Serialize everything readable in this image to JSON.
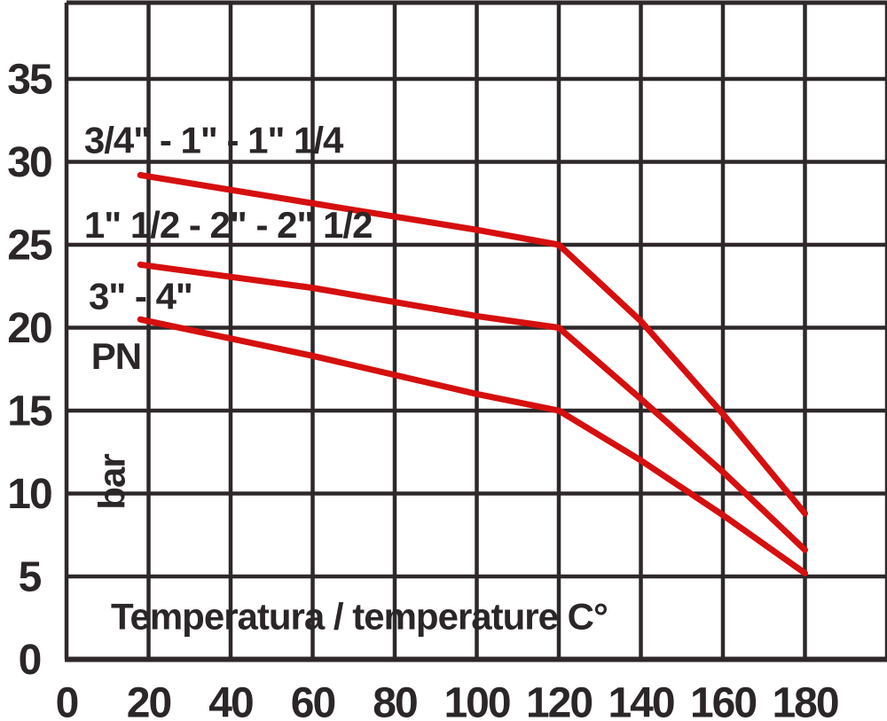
{
  "figure": {
    "background": "#ffffff",
    "grid_color": "#2e282a",
    "axis_color": "#2e282a",
    "text_color": "#2b2627",
    "curve_color": "#d60f0f"
  },
  "chart_data": {
    "type": "line",
    "title": "",
    "xlabel": "Temperatura / temperature C°",
    "ylabel": "PN",
    "ylabel_unit": "bar",
    "grid": true,
    "legend_position": "inline-annotations",
    "x_ticks": [
      0,
      20,
      40,
      60,
      80,
      100,
      120,
      140,
      160,
      180
    ],
    "y_ticks": [
      0,
      5,
      10,
      15,
      20,
      25,
      30,
      35
    ],
    "xlim": [
      0,
      200
    ],
    "ylim": [
      0,
      39.6
    ],
    "series": [
      {
        "name": "3/4\" - 1\" - 1\" 1/4",
        "points": [
          [
            18,
            29.2
          ],
          [
            60,
            27.5
          ],
          [
            100,
            25.9
          ],
          [
            120,
            25
          ],
          [
            140,
            20.4
          ],
          [
            160,
            14.8
          ],
          [
            180,
            8.8
          ]
        ]
      },
      {
        "name": "1\" 1/2 - 2\" - 2\" 1/2",
        "points": [
          [
            18,
            23.8
          ],
          [
            60,
            22.4
          ],
          [
            100,
            20.7
          ],
          [
            120,
            20
          ],
          [
            140,
            15.7
          ],
          [
            160,
            11.3
          ],
          [
            180,
            6.6
          ]
        ]
      },
      {
        "name": "3\" - 4\"",
        "points": [
          [
            18,
            20.5
          ],
          [
            60,
            18.3
          ],
          [
            100,
            16.0
          ],
          [
            120,
            15
          ],
          [
            140,
            12.0
          ],
          [
            160,
            8.7
          ],
          [
            180,
            5.2
          ]
        ]
      }
    ],
    "annotations": [
      {
        "text": "3/4\" - 1\" - 1\" 1/4",
        "x": 4.3,
        "y": 31.3,
        "anchor": "start",
        "rotate": false
      },
      {
        "text": "1\" 1/2 - 2\" - 2\" 1/2",
        "x": 4.3,
        "y": 26.2,
        "anchor": "start",
        "rotate": false
      },
      {
        "text": "3\" - 4\"",
        "x": 5.4,
        "y": 21.9,
        "anchor": "start",
        "rotate": false
      },
      {
        "text": "PN",
        "x": 6.0,
        "y": 18.3,
        "anchor": "start",
        "rotate": false
      },
      {
        "text": "bar",
        "x": 11.0,
        "y": 10.7,
        "anchor": "middle",
        "rotate": true
      },
      {
        "text": "Temperatura / temperature C°",
        "x": 10.8,
        "y": 2.6,
        "anchor": "start",
        "rotate": false
      }
    ]
  }
}
